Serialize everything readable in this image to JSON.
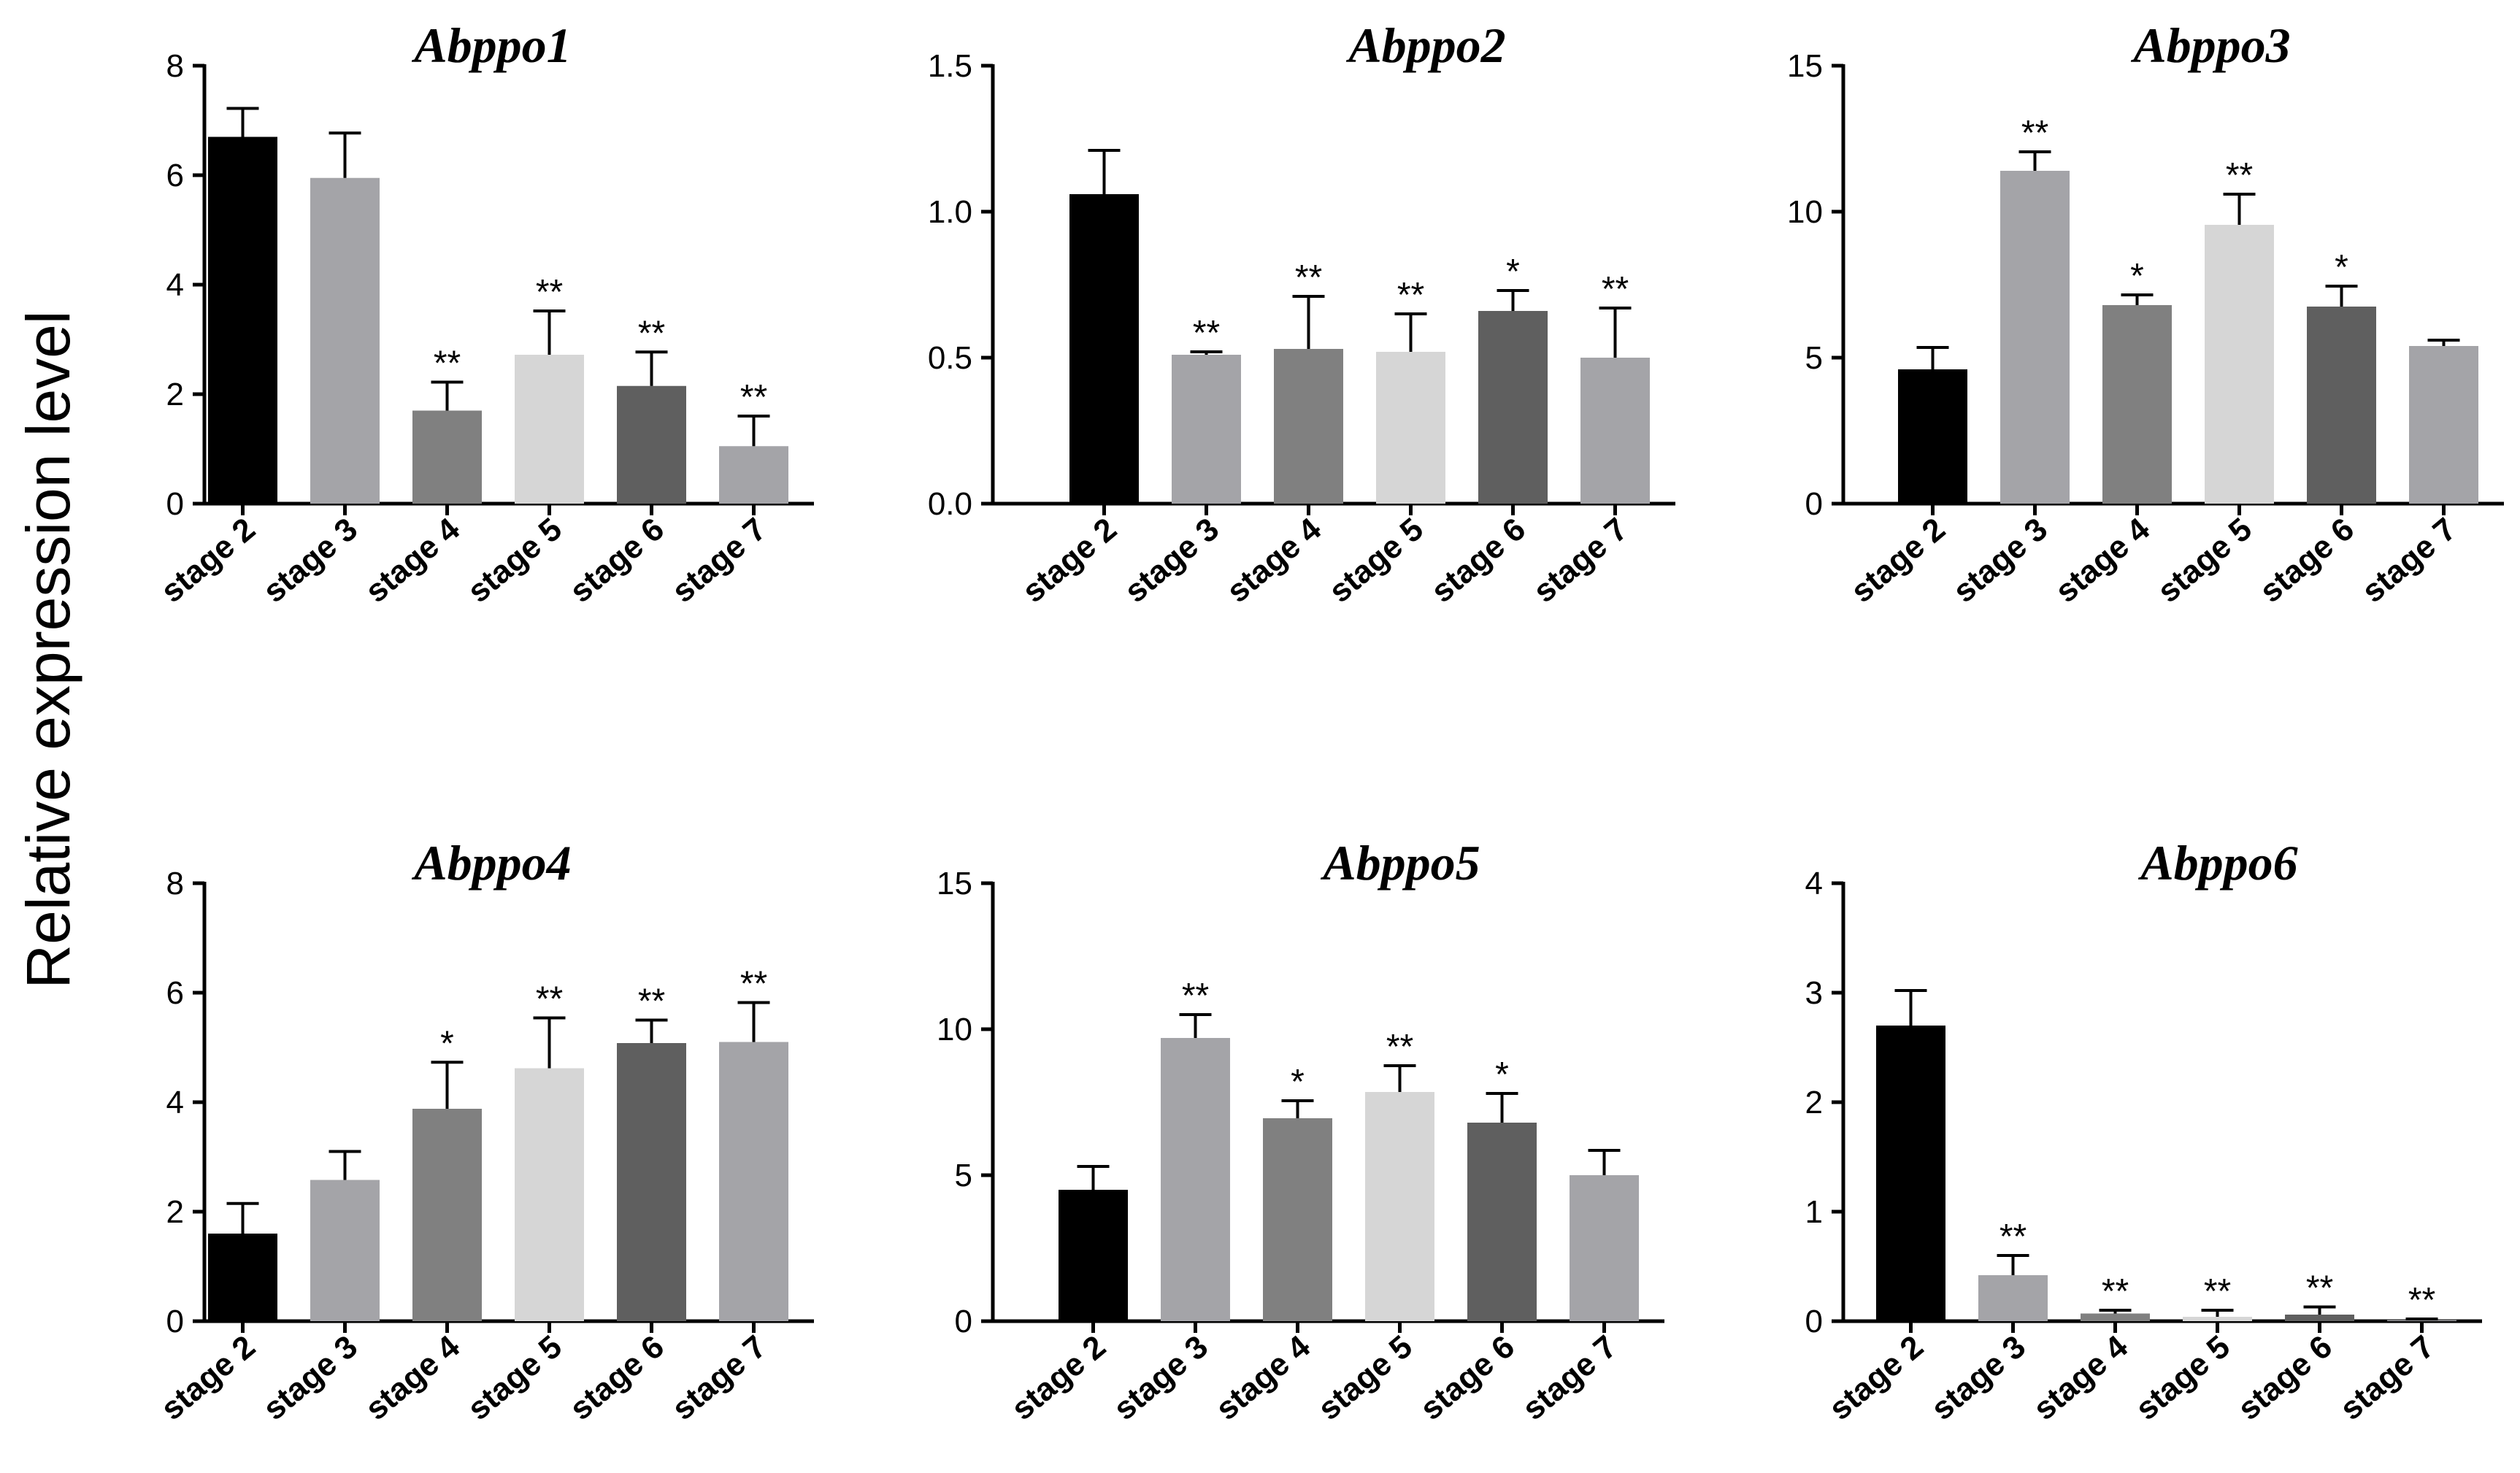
{
  "figure": {
    "ylabel": "Relative expression level"
  },
  "colors": [
    "#000000",
    "#a4a4a8",
    "#808080",
    "#d6d6d6",
    "#5f5f5f",
    "#a4a4a8"
  ],
  "chart_data": [
    {
      "type": "bar",
      "title": "Abppo1",
      "categories": [
        "stage 2",
        "stage 3",
        "stage 4",
        "stage 5",
        "stage 6",
        "stage 7"
      ],
      "values": [
        6.7,
        5.95,
        1.7,
        2.72,
        2.15,
        1.05
      ],
      "errors": [
        0.52,
        0.82,
        0.52,
        0.8,
        0.62,
        0.55
      ],
      "significance": [
        "",
        "",
        "**",
        "**",
        "**",
        "**"
      ],
      "ylim": [
        0,
        8
      ],
      "yticks": [
        0,
        2,
        4,
        6,
        8
      ],
      "ytick_labels": [
        "0",
        "2",
        "4",
        "6",
        "8"
      ]
    },
    {
      "type": "bar",
      "title": "Abppo2",
      "categories": [
        "stage 2",
        "stage 3",
        "stage 4",
        "stage 5",
        "stage 6",
        "stage 7"
      ],
      "values": [
        1.06,
        0.51,
        0.53,
        0.52,
        0.66,
        0.5
      ],
      "errors": [
        0.15,
        0.01,
        0.18,
        0.13,
        0.07,
        0.17
      ],
      "significance": [
        "",
        "**",
        "**",
        "**",
        "*",
        "**"
      ],
      "ylim": [
        0,
        1.5
      ],
      "yticks": [
        0,
        0.5,
        1.0,
        1.5
      ],
      "ytick_labels": [
        "0.0",
        "0.5",
        "1.0",
        "1.5"
      ]
    },
    {
      "type": "bar",
      "title": "Abppo3",
      "categories": [
        "stage 2",
        "stage 3",
        "stage 4",
        "stage 5",
        "stage 6",
        "stage 7"
      ],
      "values": [
        4.6,
        11.4,
        6.8,
        9.55,
        6.75,
        5.4
      ],
      "errors": [
        0.75,
        0.65,
        0.35,
        1.05,
        0.7,
        0.2
      ],
      "significance": [
        "",
        "**",
        "*",
        "**",
        "*",
        ""
      ],
      "ylim": [
        0,
        15
      ],
      "yticks": [
        0,
        5,
        10,
        15
      ],
      "ytick_labels": [
        "0",
        "5",
        "10",
        "15"
      ]
    },
    {
      "type": "bar",
      "title": "Abppo4",
      "categories": [
        "stage 2",
        "stage 3",
        "stage 4",
        "stage 5",
        "stage 6",
        "stage 7"
      ],
      "values": [
        1.6,
        2.58,
        3.88,
        4.62,
        5.08,
        5.1
      ],
      "errors": [
        0.55,
        0.52,
        0.85,
        0.92,
        0.42,
        0.72
      ],
      "significance": [
        "",
        "",
        "*",
        "**",
        "**",
        "**"
      ],
      "ylim": [
        0,
        8
      ],
      "yticks": [
        0,
        2,
        4,
        6,
        8
      ],
      "ytick_labels": [
        "0",
        "2",
        "4",
        "6",
        "8"
      ]
    },
    {
      "type": "bar",
      "title": "Abppo5",
      "categories": [
        "stage 2",
        "stage 3",
        "stage 4",
        "stage 5",
        "stage 6",
        "stage 7"
      ],
      "values": [
        4.5,
        9.7,
        6.95,
        7.85,
        6.8,
        5.0
      ],
      "errors": [
        0.8,
        0.8,
        0.6,
        0.9,
        1.0,
        0.85
      ],
      "significance": [
        "",
        "**",
        "*",
        "**",
        "*",
        ""
      ],
      "ylim": [
        0,
        15
      ],
      "yticks": [
        0,
        5,
        10,
        15
      ],
      "ytick_labels": [
        "0",
        "5",
        "10",
        "15"
      ]
    },
    {
      "type": "bar",
      "title": "Abppo6",
      "categories": [
        "stage 2",
        "stage 3",
        "stage 4",
        "stage 5",
        "stage 6",
        "stage 7"
      ],
      "values": [
        2.7,
        0.42,
        0.07,
        0.04,
        0.06,
        0.01
      ],
      "errors": [
        0.32,
        0.18,
        0.03,
        0.06,
        0.07,
        0.01
      ],
      "significance": [
        "",
        "**",
        "**",
        "**",
        "**",
        "**"
      ],
      "ylim": [
        0,
        4
      ],
      "yticks": [
        0,
        1,
        2,
        3,
        4
      ],
      "ytick_labels": [
        "0",
        "1",
        "2",
        "3",
        "4"
      ]
    }
  ]
}
